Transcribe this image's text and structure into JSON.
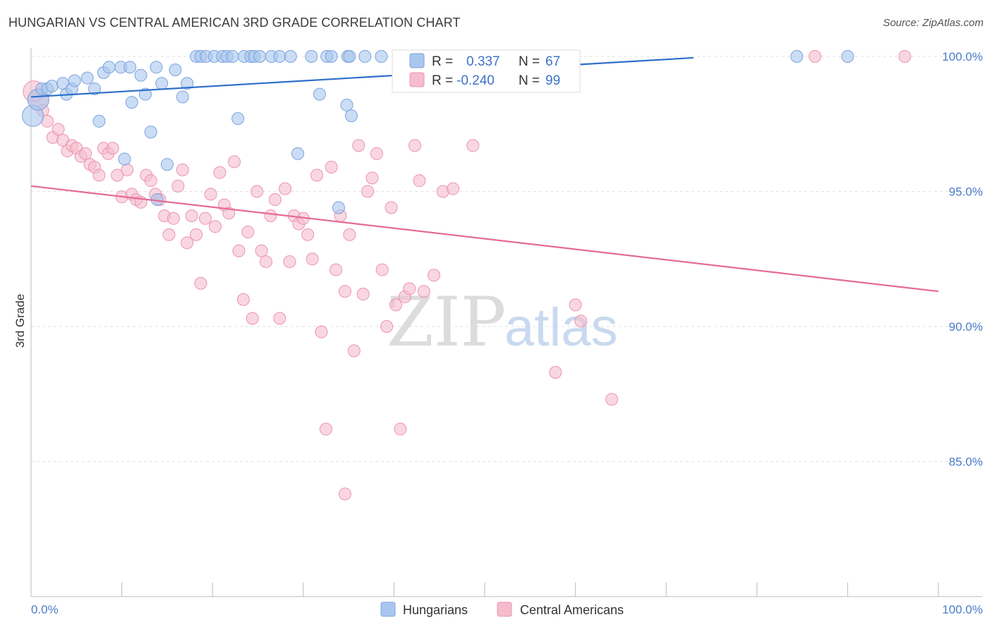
{
  "title": "HUNGARIAN VS CENTRAL AMERICAN 3RD GRADE CORRELATION CHART",
  "source": "Source: ZipAtlas.com",
  "watermark": {
    "part1": "ZIP",
    "part2": "atlas"
  },
  "colors": {
    "blue_fill": "#a9c6ef",
    "blue_stroke": "#7aa3dc",
    "blue_line": "#2e6fca",
    "pink_fill": "#f5bccd",
    "pink_stroke": "#ec93b0",
    "pink_line": "#e56b95",
    "tick_label": "#4a7cc9",
    "grid": "#e2e2e2"
  },
  "legend": {
    "rows": [
      {
        "r_label": "R =",
        "r_value": "0.337",
        "n_label": "N =",
        "n_value": "67",
        "color": "blue"
      },
      {
        "r_label": "R =",
        "r_value": "-0.240",
        "n_label": "N =",
        "n_value": "99",
        "color": "pink"
      }
    ]
  },
  "bottom_legend": [
    "Hungarians",
    "Central Americans"
  ],
  "chart_data": {
    "type": "scatter",
    "xlabel": "",
    "ylabel": "3rd Grade",
    "xlim": [
      0,
      100
    ],
    "ylim": [
      80.5,
      100.7
    ],
    "x_tick_labels": [
      "0.0%",
      "100.0%"
    ],
    "y_ticks": [
      85,
      90,
      95,
      100
    ],
    "y_tick_labels": [
      "85.0%",
      "90.0%",
      "95.0%",
      "100.0%"
    ],
    "grid": true,
    "series": [
      {
        "name": "Hungarians",
        "color": "#a9c6ef",
        "trend": {
          "x": [
            0,
            73
          ],
          "y": [
            98.5,
            99.95
          ]
        },
        "points": [
          [
            0.2,
            97.8
          ],
          [
            0.8,
            98.4
          ],
          [
            1.2,
            98.8
          ],
          [
            1.8,
            98.8
          ],
          [
            2.3,
            98.9
          ],
          [
            3.5,
            99.0
          ],
          [
            3.9,
            98.6
          ],
          [
            4.5,
            98.8
          ],
          [
            4.8,
            99.1
          ],
          [
            6.2,
            99.2
          ],
          [
            7.0,
            98.8
          ],
          [
            8.0,
            99.4
          ],
          [
            8.6,
            99.6
          ],
          [
            9.9,
            99.6
          ],
          [
            10.9,
            99.6
          ],
          [
            11.1,
            98.3
          ],
          [
            12.1,
            99.3
          ],
          [
            12.6,
            98.6
          ],
          [
            13.2,
            97.2
          ],
          [
            13.8,
            99.6
          ],
          [
            14.4,
            99.0
          ],
          [
            15.9,
            99.5
          ],
          [
            16.7,
            98.5
          ],
          [
            17.2,
            99.0
          ],
          [
            18.2,
            100
          ],
          [
            18.7,
            100
          ],
          [
            19.3,
            100
          ],
          [
            20.2,
            100
          ],
          [
            21.1,
            100
          ],
          [
            21.6,
            100
          ],
          [
            22.2,
            100
          ],
          [
            23.5,
            100
          ],
          [
            24.2,
            100
          ],
          [
            24.6,
            100
          ],
          [
            25.2,
            100
          ],
          [
            26.5,
            100
          ],
          [
            27.4,
            100
          ],
          [
            28.6,
            100
          ],
          [
            30.9,
            100
          ],
          [
            32.6,
            100
          ],
          [
            33.1,
            100
          ],
          [
            34.9,
            100
          ],
          [
            35.1,
            100
          ],
          [
            36.8,
            100
          ],
          [
            38.6,
            100
          ],
          [
            40.5,
            100
          ],
          [
            42.5,
            100
          ],
          [
            43.9,
            99.3
          ],
          [
            46.4,
            100
          ],
          [
            48.4,
            100
          ],
          [
            51.2,
            100
          ],
          [
            51.9,
            98.9
          ],
          [
            53.7,
            98.9
          ],
          [
            54.6,
            100
          ],
          [
            15.0,
            96.0
          ],
          [
            13.9,
            94.7
          ],
          [
            29.4,
            96.4
          ],
          [
            33.9,
            94.4
          ],
          [
            22.8,
            97.7
          ],
          [
            31.8,
            98.6
          ],
          [
            34.8,
            98.2
          ],
          [
            35.3,
            97.8
          ],
          [
            7.5,
            97.6
          ],
          [
            10.3,
            96.2
          ],
          [
            57.4,
            100
          ],
          [
            90.0,
            100
          ],
          [
            84.4,
            100
          ]
        ]
      },
      {
        "name": "Central Americans",
        "color": "#f5bccd",
        "trend": {
          "x": [
            0,
            100
          ],
          "y": [
            95.2,
            91.3
          ]
        },
        "points": [
          [
            0.3,
            98.7
          ],
          [
            0.8,
            98.4
          ],
          [
            1.3,
            98.0
          ],
          [
            1.8,
            97.6
          ],
          [
            2.4,
            97.0
          ],
          [
            3.0,
            97.3
          ],
          [
            3.5,
            96.9
          ],
          [
            4.0,
            96.5
          ],
          [
            4.5,
            96.7
          ],
          [
            5.0,
            96.6
          ],
          [
            5.5,
            96.3
          ],
          [
            6.0,
            96.4
          ],
          [
            6.5,
            96.0
          ],
          [
            7.0,
            95.9
          ],
          [
            7.5,
            95.6
          ],
          [
            8.0,
            96.6
          ],
          [
            8.5,
            96.4
          ],
          [
            9.0,
            96.6
          ],
          [
            9.5,
            95.6
          ],
          [
            10.0,
            94.8
          ],
          [
            10.6,
            95.8
          ],
          [
            11.1,
            94.9
          ],
          [
            11.6,
            94.7
          ],
          [
            12.1,
            94.6
          ],
          [
            12.7,
            95.6
          ],
          [
            13.2,
            95.4
          ],
          [
            13.7,
            94.9
          ],
          [
            14.2,
            94.7
          ],
          [
            14.7,
            94.1
          ],
          [
            15.2,
            93.4
          ],
          [
            15.7,
            94.0
          ],
          [
            16.2,
            95.2
          ],
          [
            16.7,
            95.8
          ],
          [
            17.2,
            93.1
          ],
          [
            17.7,
            94.1
          ],
          [
            18.2,
            93.4
          ],
          [
            18.7,
            91.6
          ],
          [
            19.2,
            94.0
          ],
          [
            19.8,
            94.9
          ],
          [
            20.3,
            93.7
          ],
          [
            20.8,
            95.7
          ],
          [
            21.3,
            94.5
          ],
          [
            21.8,
            94.2
          ],
          [
            22.4,
            96.1
          ],
          [
            22.9,
            92.8
          ],
          [
            23.4,
            91.0
          ],
          [
            23.9,
            93.5
          ],
          [
            24.4,
            90.3
          ],
          [
            24.9,
            95.0
          ],
          [
            25.4,
            92.8
          ],
          [
            25.9,
            92.4
          ],
          [
            26.4,
            94.1
          ],
          [
            26.9,
            94.7
          ],
          [
            27.4,
            90.3
          ],
          [
            28.0,
            95.1
          ],
          [
            28.5,
            92.4
          ],
          [
            29.0,
            94.1
          ],
          [
            29.5,
            93.8
          ],
          [
            30.0,
            94.0
          ],
          [
            30.5,
            93.4
          ],
          [
            31.0,
            92.5
          ],
          [
            31.5,
            95.6
          ],
          [
            32.0,
            89.8
          ],
          [
            32.5,
            86.2
          ],
          [
            33.1,
            95.9
          ],
          [
            33.6,
            92.1
          ],
          [
            34.1,
            94.1
          ],
          [
            34.6,
            91.3
          ],
          [
            35.1,
            93.4
          ],
          [
            35.6,
            89.1
          ],
          [
            36.1,
            96.7
          ],
          [
            36.6,
            91.2
          ],
          [
            37.1,
            95.0
          ],
          [
            37.6,
            95.5
          ],
          [
            38.1,
            96.4
          ],
          [
            38.7,
            92.1
          ],
          [
            39.2,
            90.0
          ],
          [
            39.7,
            94.4
          ],
          [
            40.2,
            90.8
          ],
          [
            40.7,
            86.2
          ],
          [
            41.2,
            91.1
          ],
          [
            41.7,
            91.4
          ],
          [
            42.3,
            96.7
          ],
          [
            42.8,
            95.4
          ],
          [
            43.3,
            91.3
          ],
          [
            44.4,
            91.9
          ],
          [
            45.4,
            95.0
          ],
          [
            46.5,
            95.1
          ],
          [
            48.7,
            96.7
          ],
          [
            57.8,
            88.3
          ],
          [
            60.0,
            90.8
          ],
          [
            60.6,
            90.2
          ],
          [
            64.0,
            87.3
          ],
          [
            51.5,
            100
          ],
          [
            56.0,
            100
          ],
          [
            86.4,
            100
          ],
          [
            96.3,
            100
          ],
          [
            34.6,
            83.8
          ],
          [
            50.5,
            100
          ]
        ]
      }
    ]
  }
}
